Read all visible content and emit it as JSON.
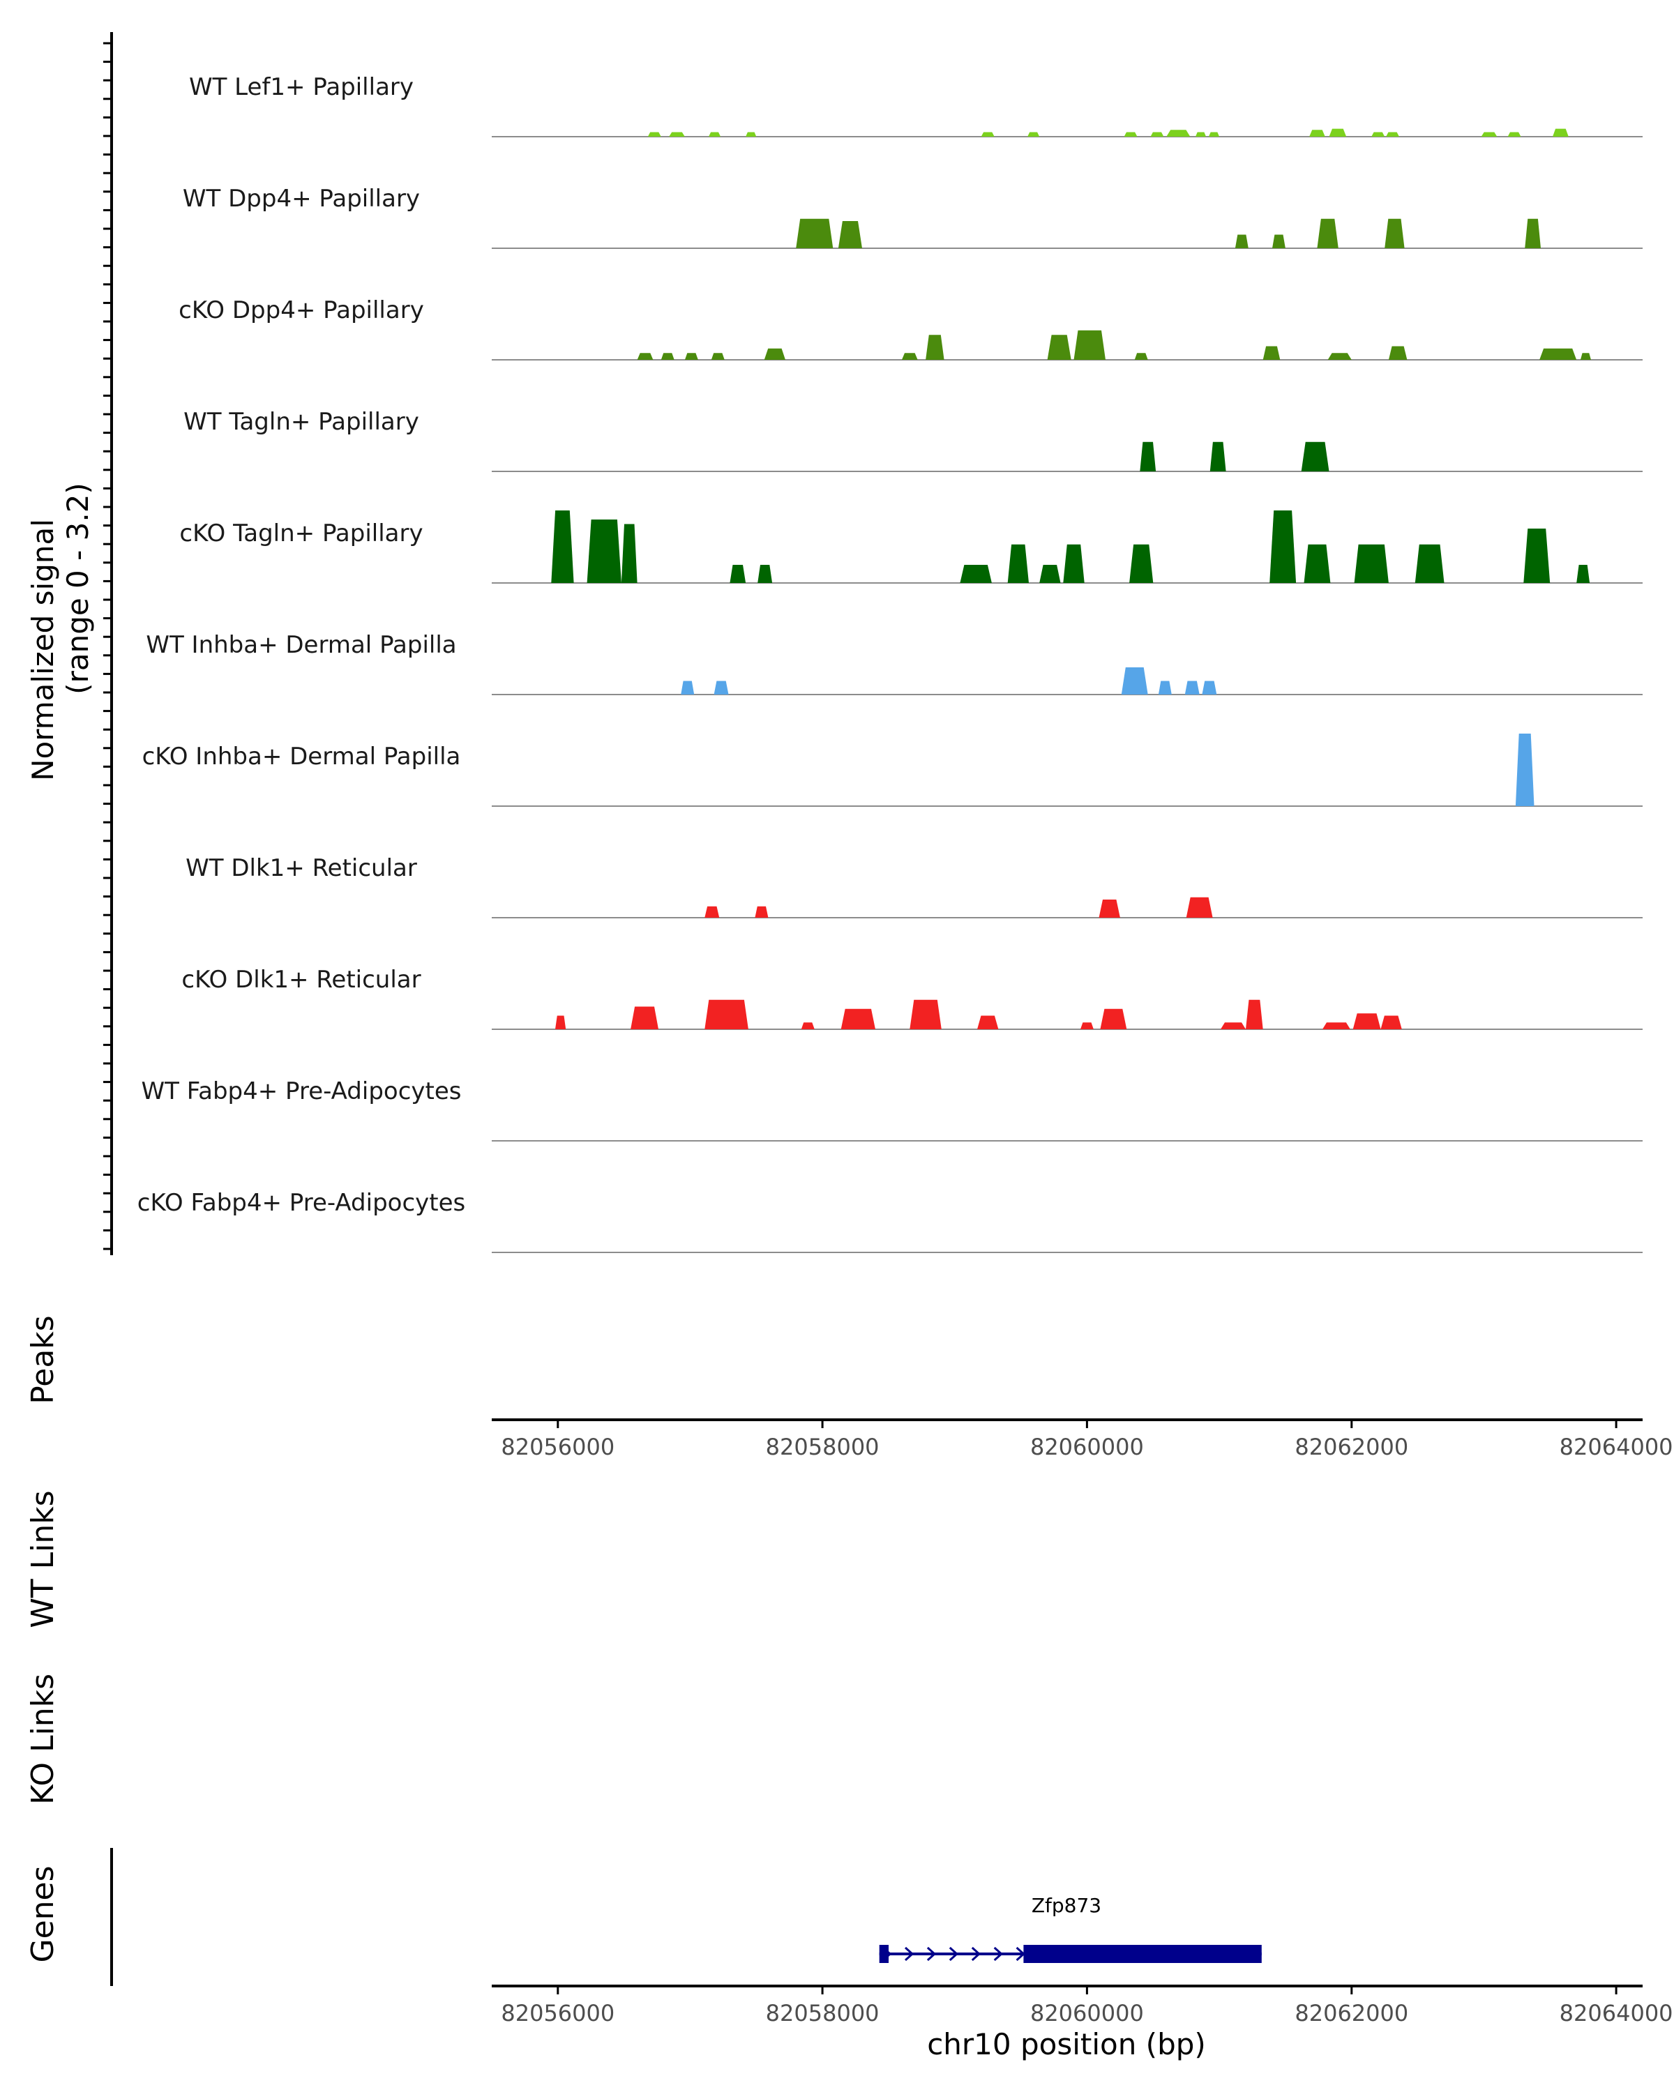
{
  "chart_data": {
    "type": "area",
    "title": "",
    "xlabel": "chr10 position (bp)",
    "x_ticks": [
      "82056000",
      "82058000",
      "82060000",
      "82062000",
      "82064000"
    ],
    "xlim": [
      82055500,
      82064200
    ],
    "ylabel_line1": "Normalized signal",
    "ylabel_line2": "(range 0 - 3.2)",
    "ylim": [
      0,
      3.2
    ],
    "peaks_label": "Peaks",
    "wt_links_label": "WT Links",
    "ko_links_label": "KO Links",
    "genes_label": "Genes",
    "gene": {
      "name": "Zfp873",
      "start": 82058430,
      "end": 82061320,
      "thick_start": 82059520,
      "thick_end": 82061320,
      "small_exon": [
        82058430,
        82058500
      ],
      "color": "#00008b"
    },
    "tracks": [
      {
        "name": "WT Lef1+ Papillary",
        "color": "#7cd11e",
        "segments": [
          [
            82056680,
            82056780,
            0.2
          ],
          [
            82056840,
            82056960,
            0.2
          ],
          [
            82057140,
            82057230,
            0.2
          ],
          [
            82057420,
            82057500,
            0.2
          ],
          [
            82059200,
            82059300,
            0.2
          ],
          [
            82059550,
            82059640,
            0.2
          ],
          [
            82060280,
            82060380,
            0.2
          ],
          [
            82060480,
            82060580,
            0.2
          ],
          [
            82060600,
            82060780,
            0.3
          ],
          [
            82060820,
            82060900,
            0.2
          ],
          [
            82060920,
            82061000,
            0.2
          ],
          [
            82061680,
            82061800,
            0.3
          ],
          [
            82061830,
            82061960,
            0.35
          ],
          [
            82062150,
            82062250,
            0.2
          ],
          [
            82062260,
            82062360,
            0.2
          ],
          [
            82062980,
            82063100,
            0.2
          ],
          [
            82063180,
            82063280,
            0.2
          ],
          [
            82063520,
            82063640,
            0.35
          ]
        ]
      },
      {
        "name": "WT Dpp4+ Papillary",
        "color": "#4b8b0d",
        "segments": [
          [
            82057800,
            82058080,
            1.3
          ],
          [
            82058120,
            82058300,
            1.2
          ],
          [
            82061120,
            82061220,
            0.6
          ],
          [
            82061400,
            82061500,
            0.6
          ],
          [
            82061740,
            82061900,
            1.3
          ],
          [
            82062250,
            82062400,
            1.3
          ],
          [
            82063310,
            82063430,
            1.3
          ]
        ]
      },
      {
        "name": "cKO Dpp4+ Papillary",
        "color": "#4b8b0d",
        "segments": [
          [
            82056600,
            82056720,
            0.3
          ],
          [
            82056780,
            82056880,
            0.3
          ],
          [
            82056960,
            82057060,
            0.3
          ],
          [
            82057160,
            82057260,
            0.3
          ],
          [
            82057560,
            82057720,
            0.5
          ],
          [
            82058600,
            82058720,
            0.3
          ],
          [
            82058780,
            82058920,
            1.1
          ],
          [
            82059700,
            82059880,
            1.1
          ],
          [
            82059900,
            82060140,
            1.3
          ],
          [
            82060360,
            82060460,
            0.3
          ],
          [
            82061330,
            82061460,
            0.6
          ],
          [
            82061820,
            82062000,
            0.3
          ],
          [
            82062280,
            82062420,
            0.6
          ],
          [
            82063420,
            82063700,
            0.5
          ],
          [
            82063730,
            82063810,
            0.3
          ]
        ]
      },
      {
        "name": "WT Tagln+ Papillary",
        "color": "#006400",
        "segments": [
          [
            82060400,
            82060520,
            1.3
          ],
          [
            82060930,
            82061050,
            1.3
          ],
          [
            82061620,
            82061830,
            1.3
          ]
        ]
      },
      {
        "name": "cKO Tagln+ Papillary",
        "color": "#006400",
        "segments": [
          [
            82055950,
            82056120,
            3.2
          ],
          [
            82056220,
            82056480,
            2.8
          ],
          [
            82056480,
            82056600,
            2.6
          ],
          [
            82057300,
            82057420,
            0.8
          ],
          [
            82057510,
            82057620,
            0.8
          ],
          [
            82059040,
            82059280,
            0.8
          ],
          [
            82059400,
            82059560,
            1.7
          ],
          [
            82059640,
            82059800,
            0.8
          ],
          [
            82059820,
            82059980,
            1.7
          ],
          [
            82060320,
            82060500,
            1.7
          ],
          [
            82061380,
            82061580,
            3.2
          ],
          [
            82061640,
            82061840,
            1.7
          ],
          [
            82062020,
            82062280,
            1.7
          ],
          [
            82062480,
            82062700,
            1.7
          ],
          [
            82063300,
            82063500,
            2.4
          ],
          [
            82063700,
            82063800,
            0.8
          ]
        ]
      },
      {
        "name": "WT Inhba+ Dermal Papilla",
        "color": "#56a5e8",
        "segments": [
          [
            82056930,
            82057030,
            0.6
          ],
          [
            82057180,
            82057290,
            0.6
          ],
          [
            82060260,
            82060460,
            1.2
          ],
          [
            82060540,
            82060640,
            0.6
          ],
          [
            82060740,
            82060850,
            0.6
          ],
          [
            82060870,
            82060980,
            0.6
          ]
        ]
      },
      {
        "name": "cKO Inhba+ Dermal Papilla",
        "color": "#56a5e8",
        "segments": [
          [
            82063240,
            82063380,
            3.2
          ]
        ]
      },
      {
        "name": "WT Dlk1+ Reticular",
        "color": "#f22222",
        "segments": [
          [
            82057110,
            82057220,
            0.5
          ],
          [
            82057490,
            82057590,
            0.5
          ],
          [
            82060090,
            82060250,
            0.8
          ],
          [
            82060750,
            82060950,
            0.9
          ]
        ]
      },
      {
        "name": "cKO Dlk1+ Reticular",
        "color": "#f22222",
        "segments": [
          [
            82055980,
            82056060,
            0.6
          ],
          [
            82056550,
            82056760,
            1.0
          ],
          [
            82057110,
            82057440,
            1.3
          ],
          [
            82057840,
            82057940,
            0.3
          ],
          [
            82058140,
            82058400,
            0.9
          ],
          [
            82058660,
            82058900,
            1.3
          ],
          [
            82059170,
            82059330,
            0.6
          ],
          [
            82059950,
            82060050,
            0.3
          ],
          [
            82060100,
            82060300,
            0.9
          ],
          [
            82061010,
            82061200,
            0.3
          ],
          [
            82061200,
            82061330,
            1.3
          ],
          [
            82061780,
            82061990,
            0.3
          ],
          [
            82062010,
            82062220,
            0.7
          ],
          [
            82062220,
            82062380,
            0.6
          ]
        ]
      },
      {
        "name": "WT Fabp4+ Pre-Adipocytes",
        "color": "#f4a01c",
        "segments": []
      },
      {
        "name": "cKO Fabp4+ Pre-Adipocytes",
        "color": "#f4a01c",
        "segments": []
      }
    ]
  }
}
